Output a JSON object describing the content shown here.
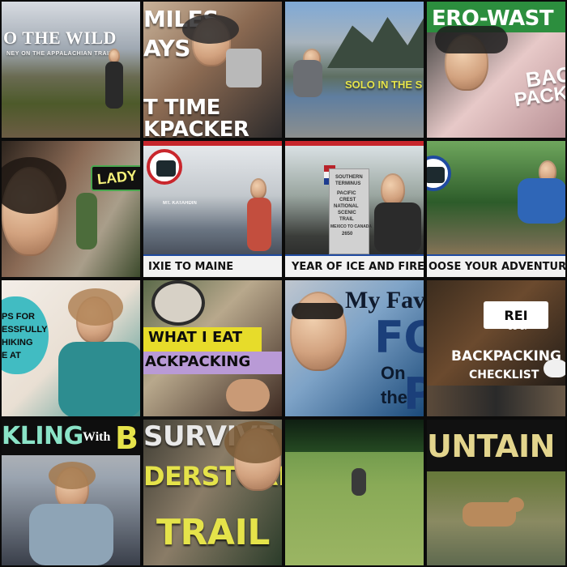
{
  "thumbnails": [
    {
      "id": "t1",
      "lines": [
        "O THE WILD",
        "NEY ON THE APPALACHIAN TRAIL"
      ]
    },
    {
      "id": "t2",
      "lines": [
        "MILES",
        "AYS",
        "T TIME",
        "KPACKER"
      ]
    },
    {
      "id": "t3",
      "lines": [
        "SOLO IN THE S"
      ]
    },
    {
      "id": "t4",
      "lines": [
        "ERO-WAST",
        "BAC",
        "PACK"
      ]
    },
    {
      "id": "t5",
      "lines": [
        "LADY"
      ]
    },
    {
      "id": "t6",
      "lines": [
        "IXIE TO MAINE",
        "MT. KATAHDIN"
      ]
    },
    {
      "id": "t7",
      "lines": [
        "YEAR OF ICE AND FIRE",
        "SOUTHERN",
        "TERMINUS",
        "PACIFIC",
        "CREST",
        "NATIONAL",
        "SCENIC",
        "TRAIL",
        "MEXICO TO CANADA",
        "2650"
      ]
    },
    {
      "id": "t8",
      "lines": [
        "OOSE YOUR ADVENTURE"
      ]
    },
    {
      "id": "t9",
      "lines": [
        "PS FOR",
        "ESSFULLY",
        "HIKING",
        "E AT"
      ]
    },
    {
      "id": "t10",
      "lines": [
        "WHAT I EAT",
        "ACKPACKING"
      ]
    },
    {
      "id": "t11",
      "lines": [
        "My Favo",
        "FOO",
        "On",
        "the",
        "P"
      ]
    },
    {
      "id": "t12",
      "lines": [
        "REI",
        "CO-OP",
        "BACKPACKING",
        "CHECKLIST"
      ]
    },
    {
      "id": "t13",
      "lines": [
        "KLING",
        "With",
        "BU"
      ]
    },
    {
      "id": "t14",
      "lines": [
        "SURVIVE",
        "DERSTORM",
        "TRAIL"
      ]
    },
    {
      "id": "t15",
      "lines": []
    },
    {
      "id": "t16",
      "lines": [
        "UNTAIN LIO"
      ]
    }
  ],
  "colors": {
    "accent_red": "#c7262c",
    "accent_blue": "#1f4aa0",
    "green_banner": "#4aa84f",
    "yellow_text": "#e5e34a"
  }
}
